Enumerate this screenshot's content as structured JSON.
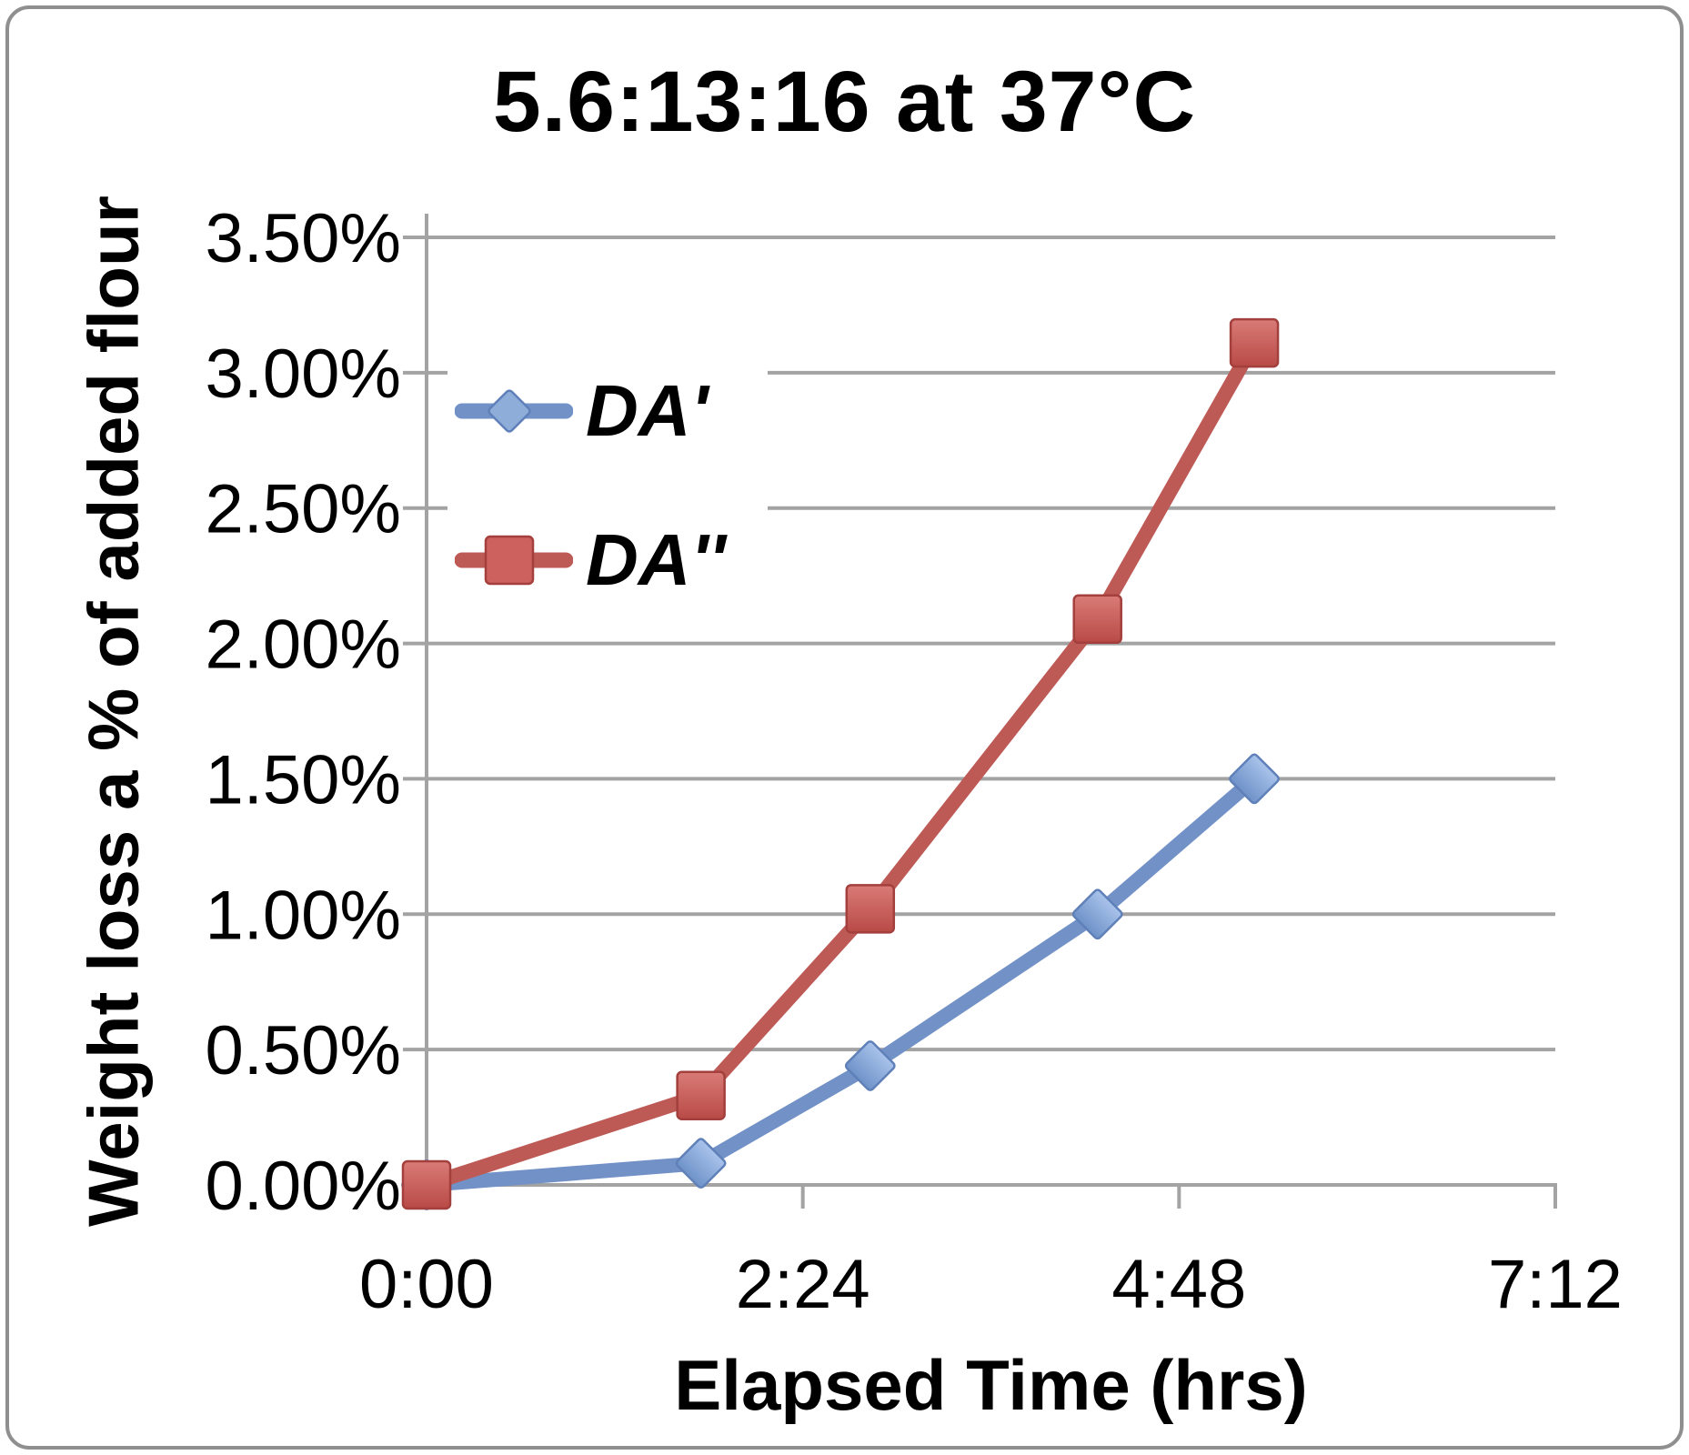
{
  "figure": {
    "border_color": "#8f8f8f",
    "background": "#ffffff"
  },
  "chart_data": {
    "type": "line",
    "title": "5.6:13:16 at 37°C",
    "xlabel": "Elapsed Time (hrs)",
    "ylabel": "Weight loss a % of added flour",
    "grid": true,
    "legend_position": "inside-upper-left",
    "xlim_hours": [
      0,
      7.2
    ],
    "ylim_pct": [
      0,
      3.5
    ],
    "x_tick_labels": [
      "0:00",
      "2:24",
      "4:48",
      "7:12"
    ],
    "x_tick_hours": [
      0,
      2.4,
      4.8,
      7.2
    ],
    "y_tick_labels": [
      "0.00%",
      "0.50%",
      "1.00%",
      "1.50%",
      "2.00%",
      "2.50%",
      "3.00%",
      "3.50%"
    ],
    "y_tick_pct": [
      0,
      0.5,
      1,
      1.5,
      2,
      2.5,
      3,
      3.5
    ],
    "x_point_times": [
      "0:00",
      "1:45",
      "2:50",
      "4:17",
      "5:17"
    ],
    "x_point_hours": [
      0,
      1.75,
      2.83,
      4.28,
      5.28
    ],
    "series": [
      {
        "name": "DA'",
        "marker": "diamond",
        "line_color": "#7191C7",
        "marker_fill_top": "#A9C3EB",
        "marker_fill_bottom": "#6E92C8",
        "marker_stroke": "#5F80B8",
        "values_pct": [
          0.0,
          0.08,
          0.44,
          1.0,
          1.5
        ]
      },
      {
        "name": "DA''",
        "marker": "square",
        "line_color": "#BE5A56",
        "marker_fill_top": "#D97B77",
        "marker_fill_bottom": "#B94A46",
        "marker_stroke": "#A33F3C",
        "values_pct": [
          0.0,
          0.33,
          1.02,
          2.09,
          3.11
        ]
      }
    ],
    "colors": {
      "gridline": "#A3A3A3",
      "axis": "#A3A3A3",
      "text": "#000000",
      "legend_background": "#FFFFFF"
    }
  }
}
